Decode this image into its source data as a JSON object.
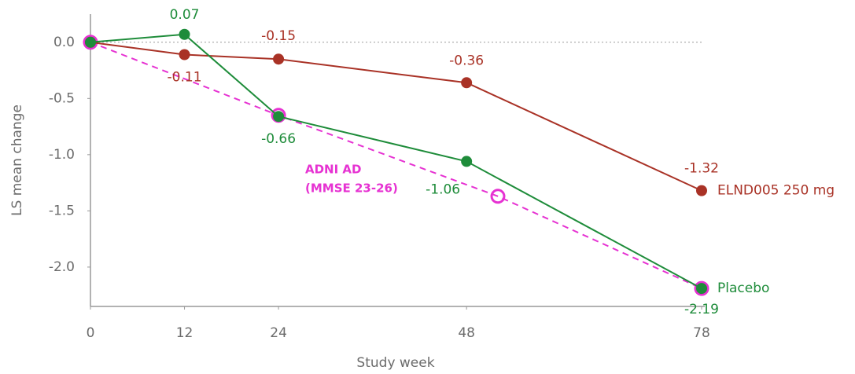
{
  "chart_data": {
    "type": "line",
    "x_label": "Study week",
    "y_label": "LS mean change",
    "xlim": [
      0,
      78
    ],
    "xticks": [
      0,
      12,
      24,
      48,
      78
    ],
    "ylim": [
      -2.35,
      0.25
    ],
    "yticks": [
      {
        "value": 0,
        "label": "0.0"
      },
      -0.5,
      {
        "value": -1,
        "label": "-1.0"
      },
      -1.5,
      {
        "value": -2,
        "label": "-2.0"
      }
    ],
    "zero_line": true,
    "annotations": [
      "ADNI AD",
      "(MMSE 23-26)"
    ],
    "annotation_color": "#e632d2",
    "series": [
      {
        "color": "#e632d2",
        "style": "dashed",
        "marker": "open",
        "x": [
          0,
          24,
          52,
          78
        ],
        "values": [
          0,
          -0.65,
          -1.37,
          -2.19
        ]
      },
      {
        "name": "ELND005 250 mg",
        "color": "#a93226",
        "style": "solid",
        "marker": "filled",
        "x": [
          0,
          12,
          24,
          48,
          78
        ],
        "values": [
          0,
          -0.11,
          -0.15,
          -0.36,
          -1.32
        ],
        "value_labels": [
          null,
          "-0.11",
          "-0.15",
          "-0.36",
          "-1.32"
        ]
      },
      {
        "name": "Placebo",
        "color": "#1e8c3a",
        "style": "solid",
        "marker": "filled",
        "x": [
          0,
          12,
          24,
          48,
          78
        ],
        "values": [
          0,
          0.07,
          -0.66,
          -1.06,
          -2.19
        ],
        "value_labels": [
          null,
          "0.07",
          "-0.66",
          "-1.06",
          "-2.19"
        ]
      }
    ]
  }
}
